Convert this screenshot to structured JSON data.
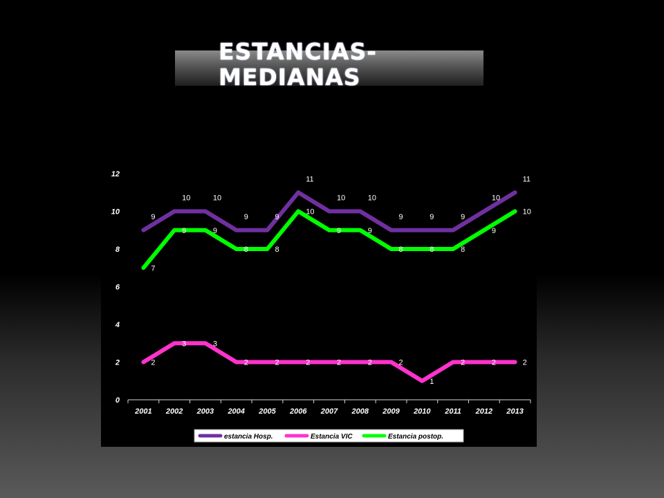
{
  "slide": {
    "title_line1": "ESTANCIAS-",
    "title_line2": "MEDIANAS"
  },
  "chart_data": {
    "type": "line",
    "title": "",
    "xlabel": "",
    "ylabel": "",
    "categories": [
      "2001",
      "2002",
      "2003",
      "2004",
      "2005",
      "2006",
      "2007",
      "2008",
      "2009",
      "2010",
      "2011",
      "2012",
      "2013"
    ],
    "ylim": [
      0,
      12
    ],
    "yticks": [
      0,
      2,
      4,
      6,
      8,
      10,
      12
    ],
    "grid": false,
    "legend_position": "bottom",
    "series": [
      {
        "name": "estancia Hosp.",
        "color": "#7030a0",
        "values": [
          9,
          10,
          10,
          9,
          9,
          11,
          10,
          10,
          9,
          9,
          9,
          10,
          11
        ]
      },
      {
        "name": "Estancia VIC",
        "color": "#ff33cc",
        "values": [
          2,
          3,
          3,
          2,
          2,
          2,
          2,
          2,
          2,
          1,
          2,
          2,
          2
        ]
      },
      {
        "name": "Estancia postop.",
        "color": "#00ff00",
        "values": [
          7,
          9,
          9,
          8,
          8,
          10,
          9,
          9,
          8,
          8,
          8,
          9,
          10
        ]
      }
    ]
  }
}
